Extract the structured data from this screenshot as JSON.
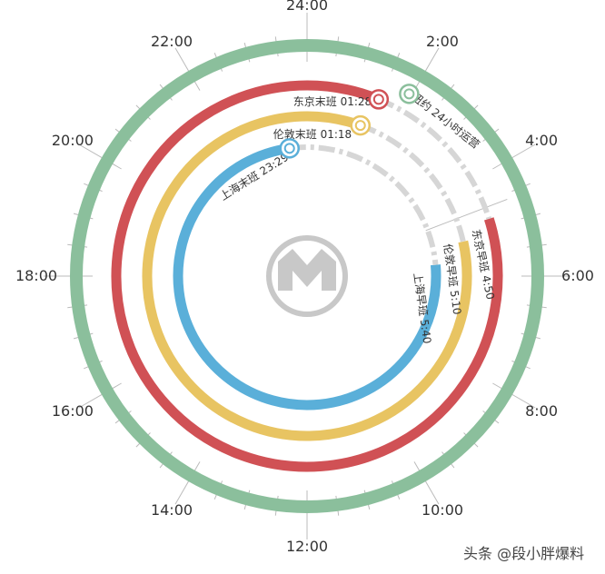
{
  "hour_labels": [
    {
      "text": "24:00",
      "hour": 0
    },
    {
      "text": "2:00",
      "hour": 2
    },
    {
      "text": "4:00",
      "hour": 4
    },
    {
      "text": "6:00",
      "hour": 6
    },
    {
      "text": "8:00",
      "hour": 8
    },
    {
      "text": "10:00",
      "hour": 10
    },
    {
      "text": "12:00",
      "hour": 12
    },
    {
      "text": "14:00",
      "hour": 14
    },
    {
      "text": "16:00",
      "hour": 16
    },
    {
      "text": "18:00",
      "hour": 18
    },
    {
      "text": "20:00",
      "hour": 20
    },
    {
      "text": "22:00",
      "hour": 22
    }
  ],
  "rings": [
    {
      "city": "nyc",
      "color": "#8bbf9c",
      "full": true,
      "service_start": "0:00",
      "service_end": "24:00",
      "note_label": "纽约 24小时运营",
      "icon_name": "nyc-subway-logo-icon"
    },
    {
      "city": "tokyo",
      "color": "#d05155",
      "full": false,
      "service_start": "4:50",
      "service_end": "01:28",
      "last_label": "东京末班  01:28",
      "first_label": "东京早班  4:50",
      "icon_name": "tokyo-metro-logo-icon"
    },
    {
      "city": "london",
      "color": "#e8c462",
      "full": false,
      "service_start": "5:10",
      "service_end": "01:18",
      "last_label": "伦敦末班  01:18",
      "first_label": "伦敦早班  5:10",
      "icon_name": "london-underground-logo-icon"
    },
    {
      "city": "shanghai",
      "color": "#5aafd9",
      "full": false,
      "service_start": "5:40",
      "service_end": "23:29",
      "last_label": "上海末班  23:29",
      "first_label": "上海早班 5:40",
      "icon_name": "shanghai-metro-logo-icon"
    }
  ],
  "center_icon": "metro-logo-icon",
  "watermark": "头条 @段小胖爆料"
}
